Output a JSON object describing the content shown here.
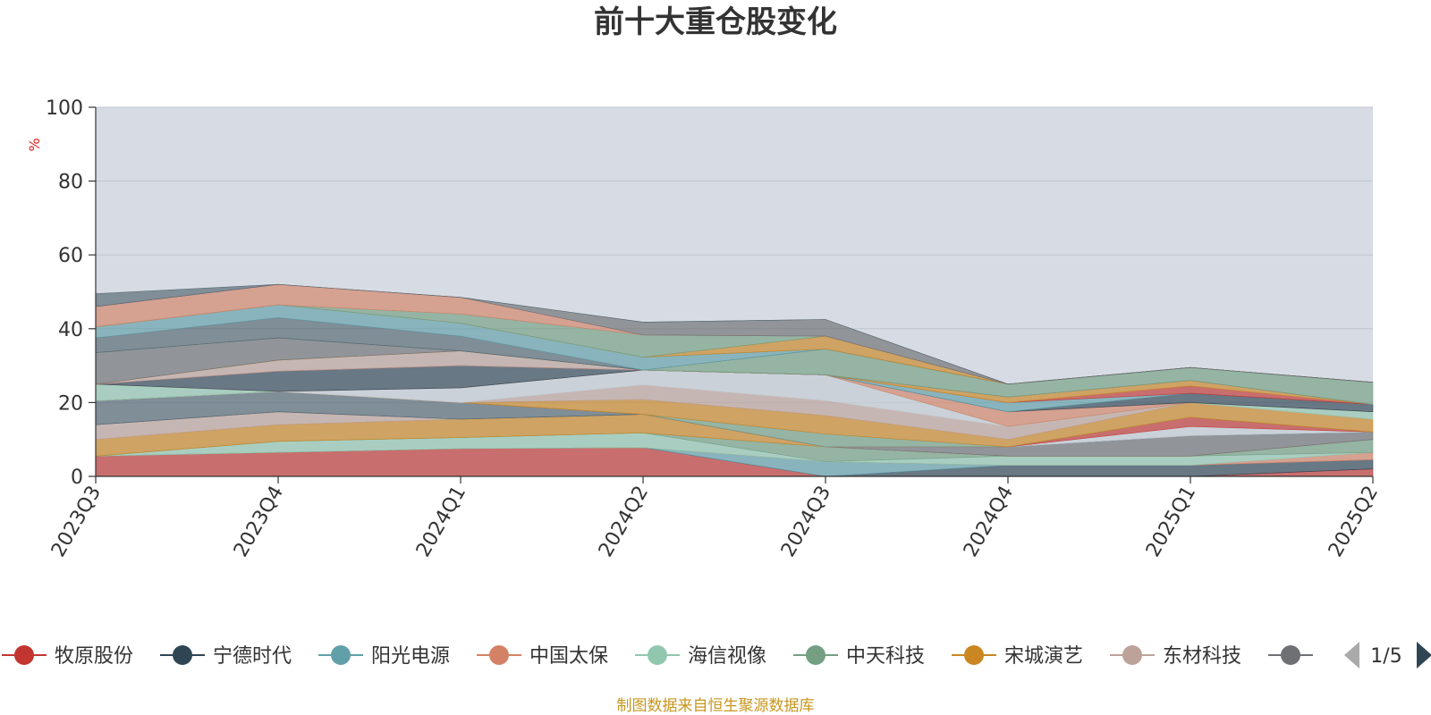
{
  "source_note": "制图数据来自恒生聚源数据库",
  "legend": {
    "page_indicator": "1/5"
  },
  "colors": {
    "plot_background": "#d7dce4",
    "grid": "#bfc5cf",
    "axis": "#333333",
    "prev_arrow_disabled": "#aaaaaa",
    "next_arrow": "#2f4554"
  },
  "chart_data": {
    "type": "area",
    "stacked": true,
    "title": "前十大重仓股变化",
    "ylabel": "%",
    "xlabel": "",
    "ylim": [
      0,
      100
    ],
    "yticks": [
      0,
      20,
      40,
      60,
      80,
      100
    ],
    "categories": [
      "2023Q3",
      "2023Q4",
      "2024Q1",
      "2024Q2",
      "2024Q3",
      "2024Q4",
      "2025Q1",
      "2025Q2"
    ],
    "grid": true,
    "legend_position": "bottom",
    "series": [
      {
        "name": "牧原股份",
        "color": "#c23531",
        "values": [
          5.5,
          6.5,
          7.5,
          7.8,
          0,
          0,
          0,
          2.0
        ]
      },
      {
        "name": "宁德时代",
        "color": "#2f4554",
        "values": [
          0,
          0,
          0,
          0,
          0,
          3.0,
          3.0,
          2.5
        ]
      },
      {
        "name": "阳光电源",
        "color": "#61a0a8",
        "values": [
          0,
          0,
          0,
          0,
          4.0,
          0,
          0,
          0
        ]
      },
      {
        "name": "中国太保",
        "color": "#d48265",
        "values": [
          0,
          0,
          0,
          0,
          0,
          0,
          0,
          2.0
        ]
      },
      {
        "name": "海信视像",
        "color": "#91c7ae",
        "values": [
          0,
          3.0,
          3.0,
          4.0,
          0,
          2.5,
          2.5,
          0
        ]
      },
      {
        "name": "中天科技",
        "color": "#749f83",
        "values": [
          0,
          0,
          0,
          0,
          4.0,
          0,
          0,
          3.5
        ]
      },
      {
        "name": "宋城演艺",
        "color": "#ca8622",
        "values": [
          4.5,
          4.5,
          5.0,
          5.0,
          0,
          0,
          0,
          0
        ]
      },
      {
        "name": "东材科技",
        "color": "#bda29a",
        "values": [
          4.0,
          3.5,
          0,
          0,
          0,
          0,
          0,
          0
        ]
      },
      {
        "name": "",
        "color": "#6e7074",
        "values": [
          0,
          0,
          0,
          0,
          0,
          2.5,
          5.5,
          2.0
        ]
      },
      {
        "name": "",
        "color": "#546570",
        "values": [
          6.5,
          5.5,
          4.5,
          0,
          0,
          0,
          0,
          0
        ]
      },
      {
        "name": "",
        "color": "#c4ccd3",
        "values": [
          0,
          0,
          0,
          0,
          0,
          0,
          2.5,
          0
        ]
      },
      {
        "name": "",
        "color": "#c23531",
        "values": [
          0,
          0,
          0,
          0,
          0,
          0,
          2.5,
          0
        ]
      },
      {
        "name": "",
        "color": "#749f83",
        "values": [
          0,
          0,
          0,
          0,
          3.5,
          0,
          0,
          0
        ]
      },
      {
        "name": "",
        "color": "#ca8622",
        "values": [
          0,
          0,
          0,
          4.0,
          5.0,
          2.0,
          4.0,
          3.5
        ]
      },
      {
        "name": "",
        "color": "#bda29a",
        "values": [
          0,
          0,
          0,
          4.0,
          4.0,
          3.5,
          0,
          0
        ]
      },
      {
        "name": "",
        "color": "#c4ccd3",
        "values": [
          0,
          0,
          4.0,
          4.0,
          7.0,
          0,
          0,
          0
        ]
      },
      {
        "name": "",
        "color": "#91c7ae",
        "values": [
          4.5,
          0,
          0,
          0,
          0,
          0,
          0,
          2.0
        ]
      },
      {
        "name": "",
        "color": "#d48265",
        "values": [
          0,
          0,
          0,
          0,
          0,
          4.0,
          0,
          0
        ]
      },
      {
        "name": "",
        "color": "#2f4554",
        "values": [
          0,
          5.5,
          6.0,
          0,
          0,
          0,
          2.5,
          2.0
        ]
      },
      {
        "name": "",
        "color": "#61a0a8",
        "values": [
          0,
          0,
          0,
          0,
          0,
          2.5,
          0,
          0
        ]
      },
      {
        "name": "",
        "color": "#c23531",
        "values": [
          0,
          0,
          0,
          0,
          0,
          0,
          2.0,
          0
        ]
      },
      {
        "name": "",
        "color": "#bda29a",
        "values": [
          0,
          3.0,
          4.0,
          0,
          0,
          0,
          0,
          0
        ]
      },
      {
        "name": "",
        "color": "#ca8622",
        "values": [
          0,
          0,
          0,
          0,
          0,
          1.5,
          1.5,
          0
        ]
      },
      {
        "name": "",
        "color": "#6e7074",
        "values": [
          8.5,
          6.0,
          0,
          0,
          0,
          0,
          0,
          0
        ]
      },
      {
        "name": "",
        "color": "#749f83",
        "values": [
          0,
          0,
          0,
          0,
          7.0,
          3.5,
          3.5,
          6.0
        ]
      },
      {
        "name": "",
        "color": "#546570",
        "values": [
          4.0,
          5.5,
          4.0,
          0,
          0,
          0,
          0,
          0
        ]
      },
      {
        "name": "",
        "color": "#61a0a8",
        "values": [
          3.0,
          3.5,
          3.5,
          3.5,
          0,
          0,
          0,
          0
        ]
      },
      {
        "name": "",
        "color": "#ca8622",
        "values": [
          0,
          0,
          0,
          0,
          3.5,
          0,
          0,
          0
        ]
      },
      {
        "name": "",
        "color": "#749f83",
        "values": [
          0,
          0,
          2.5,
          6.0,
          0,
          0,
          0,
          0
        ]
      },
      {
        "name": "",
        "color": "#d48265",
        "values": [
          5.5,
          5.5,
          4.5,
          0,
          0,
          0,
          0,
          0
        ]
      },
      {
        "name": "",
        "color": "#6e7074",
        "values": [
          0,
          0,
          0,
          3.5,
          4.5,
          0,
          0,
          0
        ]
      },
      {
        "name": "",
        "color": "#546570",
        "values": [
          3.5,
          0,
          0,
          0,
          0,
          0,
          0,
          0
        ]
      }
    ]
  }
}
